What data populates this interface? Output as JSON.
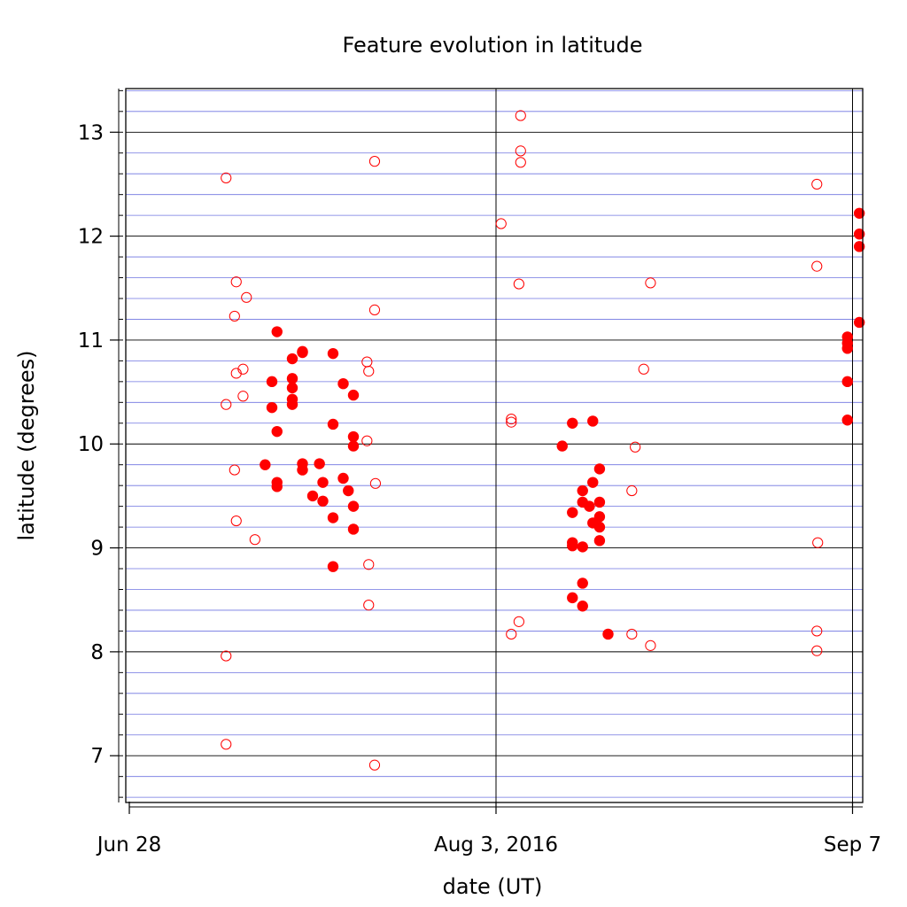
{
  "chart_data": {
    "type": "scatter",
    "title": "Feature evolution in latitude",
    "xlabel": "date (UT)",
    "ylabel": "latitude (degrees)",
    "x_ticks": [
      {
        "date": "2016-06-28",
        "label": "Jun 28"
      },
      {
        "date": "2016-08-03",
        "label": "Aug 3, 2016"
      },
      {
        "date": "2016-09-07",
        "label": "Sep 7"
      }
    ],
    "y_ticks": [
      7,
      8,
      9,
      10,
      11,
      12,
      13
    ],
    "xlim": [
      "2016-06-28",
      "2016-09-08"
    ],
    "ylim": [
      6.55,
      13.42
    ],
    "grid": {
      "major_y_color": "#000000",
      "minor_y_color": "#6f74e0",
      "minor_y_step": 0.2,
      "vertical_lines_at": [
        "2016-08-03",
        "2016-09-07"
      ]
    },
    "colors": {
      "marker": "#ff0000"
    },
    "series": [
      {
        "style": "open",
        "points": [
          [
            "2016-07-07 12:00",
            12.56
          ],
          [
            "2016-07-07 12:00",
            10.38
          ],
          [
            "2016-07-07 12:00",
            7.96
          ],
          [
            "2016-07-07 12:00",
            7.11
          ],
          [
            "2016-07-08 08:00",
            11.23
          ],
          [
            "2016-07-08 08:00",
            9.75
          ],
          [
            "2016-07-08 12:00",
            11.56
          ],
          [
            "2016-07-08 12:00",
            10.68
          ],
          [
            "2016-07-08 12:00",
            9.26
          ],
          [
            "2016-07-09 04:00",
            10.72
          ],
          [
            "2016-07-09 04:00",
            10.46
          ],
          [
            "2016-07-09 12:00",
            11.41
          ],
          [
            "2016-07-10 08:00",
            9.08
          ],
          [
            "2016-07-21 08:00",
            10.79
          ],
          [
            "2016-07-21 08:00",
            10.03
          ],
          [
            "2016-07-21 12:00",
            10.7
          ],
          [
            "2016-07-21 12:00",
            8.84
          ],
          [
            "2016-07-21 12:00",
            8.45
          ],
          [
            "2016-07-22 02:00",
            12.72
          ],
          [
            "2016-07-22 02:00",
            11.29
          ],
          [
            "2016-07-22 02:00",
            6.91
          ],
          [
            "2016-07-22 04:00",
            9.62
          ],
          [
            "2016-08-03 12:00",
            12.12
          ],
          [
            "2016-08-04 12:00",
            10.24
          ],
          [
            "2016-08-04 12:00",
            10.21
          ],
          [
            "2016-08-04 12:00",
            8.17
          ],
          [
            "2016-08-05 06:00",
            11.54
          ],
          [
            "2016-08-05 06:00",
            8.29
          ],
          [
            "2016-08-05 10:00",
            13.16
          ],
          [
            "2016-08-05 10:00",
            12.82
          ],
          [
            "2016-08-05 10:00",
            12.71
          ],
          [
            "2016-08-16 08:00",
            9.55
          ],
          [
            "2016-08-16 08:00",
            8.17
          ],
          [
            "2016-08-16 16:00",
            9.97
          ],
          [
            "2016-08-17 12:00",
            10.72
          ],
          [
            "2016-08-18 04:00",
            11.55
          ],
          [
            "2016-08-18 04:00",
            8.06
          ],
          [
            "2016-09-03 12:00",
            12.5
          ],
          [
            "2016-09-03 12:00",
            11.71
          ],
          [
            "2016-09-03 12:00",
            8.2
          ],
          [
            "2016-09-03 12:00",
            8.01
          ],
          [
            "2016-09-03 14:00",
            9.05
          ]
        ]
      },
      {
        "style": "filled",
        "points": [
          [
            "2016-07-11 08:00",
            9.8
          ],
          [
            "2016-07-12 00:00",
            10.6
          ],
          [
            "2016-07-12 00:00",
            10.35
          ],
          [
            "2016-07-12 12:00",
            11.08
          ],
          [
            "2016-07-12 12:00",
            10.12
          ],
          [
            "2016-07-12 12:00",
            9.63
          ],
          [
            "2016-07-12 12:00",
            9.59
          ],
          [
            "2016-07-14 00:00",
            10.82
          ],
          [
            "2016-07-14 00:00",
            10.63
          ],
          [
            "2016-07-14 00:00",
            10.54
          ],
          [
            "2016-07-14 00:00",
            10.43
          ],
          [
            "2016-07-14 00:00",
            10.38
          ],
          [
            "2016-07-15 00:00",
            10.89
          ],
          [
            "2016-07-15 00:00",
            10.88
          ],
          [
            "2016-07-15 00:00",
            9.81
          ],
          [
            "2016-07-15 00:00",
            9.75
          ],
          [
            "2016-07-16 00:00",
            9.5
          ],
          [
            "2016-07-16 16:00",
            9.81
          ],
          [
            "2016-07-17 00:00",
            9.63
          ],
          [
            "2016-07-17 00:00",
            9.45
          ],
          [
            "2016-07-18 00:00",
            10.87
          ],
          [
            "2016-07-18 00:00",
            10.19
          ],
          [
            "2016-07-18 00:00",
            9.29
          ],
          [
            "2016-07-18 00:00",
            8.82
          ],
          [
            "2016-07-19 00:00",
            10.58
          ],
          [
            "2016-07-19 00:00",
            9.67
          ],
          [
            "2016-07-19 12:00",
            9.55
          ],
          [
            "2016-07-20 00:00",
            10.47
          ],
          [
            "2016-07-20 00:00",
            10.07
          ],
          [
            "2016-07-20 00:00",
            9.98
          ],
          [
            "2016-07-20 00:00",
            9.4
          ],
          [
            "2016-07-20 00:00",
            9.18
          ],
          [
            "2016-08-09 12:00",
            9.98
          ],
          [
            "2016-08-10 12:00",
            10.2
          ],
          [
            "2016-08-10 12:00",
            9.34
          ],
          [
            "2016-08-10 12:00",
            9.05
          ],
          [
            "2016-08-10 12:00",
            9.02
          ],
          [
            "2016-08-10 12:00",
            8.52
          ],
          [
            "2016-08-11 12:00",
            9.55
          ],
          [
            "2016-08-11 12:00",
            9.44
          ],
          [
            "2016-08-11 12:00",
            9.01
          ],
          [
            "2016-08-11 12:00",
            8.66
          ],
          [
            "2016-08-11 12:00",
            8.44
          ],
          [
            "2016-08-12 04:00",
            9.4
          ],
          [
            "2016-08-12 12:00",
            10.22
          ],
          [
            "2016-08-12 12:00",
            9.63
          ],
          [
            "2016-08-12 12:00",
            9.24
          ],
          [
            "2016-08-13 04:00",
            9.76
          ],
          [
            "2016-08-13 04:00",
            9.44
          ],
          [
            "2016-08-13 04:00",
            9.3
          ],
          [
            "2016-08-13 04:00",
            9.2
          ],
          [
            "2016-08-13 04:00",
            9.07
          ],
          [
            "2016-08-14 00:00",
            8.17
          ],
          [
            "2016-09-06 12:00",
            11.03
          ],
          [
            "2016-09-06 12:00",
            10.97
          ],
          [
            "2016-09-06 12:00",
            10.92
          ],
          [
            "2016-09-06 12:00",
            10.6
          ],
          [
            "2016-09-06 12:00",
            10.23
          ],
          [
            "2016-09-07 16:00",
            12.22
          ],
          [
            "2016-09-07 16:00",
            12.02
          ],
          [
            "2016-09-07 16:00",
            11.9
          ],
          [
            "2016-09-07 16:00",
            11.17
          ]
        ]
      }
    ]
  }
}
